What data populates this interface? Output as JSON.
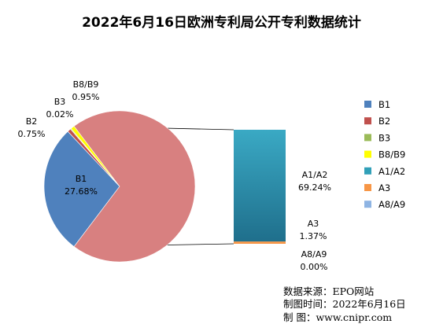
{
  "chart_data": {
    "type": "pie",
    "title": "2022年6月16日欧洲专利局公开专利数据统计",
    "series": [
      {
        "name": "B1",
        "label": "B1",
        "value_label": "27.68%",
        "value": 27.68,
        "color": "#4f81bd"
      },
      {
        "name": "B2",
        "label": "B2",
        "value_label": "0.75%",
        "value": 0.75,
        "color": "#c0504d"
      },
      {
        "name": "B3",
        "label": "B3",
        "value_label": "0.02%",
        "value": 0.02,
        "color": "#9bbb59"
      },
      {
        "name": "B8/B9",
        "label": "B8/B9",
        "value_label": "0.95%",
        "value": 0.95,
        "color": "#ffff00"
      },
      {
        "name": "A1/A2",
        "label": "A1/A2",
        "value_label": "69.24%",
        "value": 69.24,
        "color": "#31a0b8"
      },
      {
        "name": "A3",
        "label": "A3",
        "value_label": "1.37%",
        "value": 1.37,
        "color": "#f79646"
      },
      {
        "name": "A8/A9",
        "label": "A8/A9",
        "value_label": "0.00%",
        "value": 0.0,
        "color": "#8eb4e3"
      }
    ],
    "pie_of_pie": {
      "main_other_color": "#d88080"
    },
    "legend_position": "right"
  },
  "source": {
    "line1": "数据来源：EPO网站",
    "line2": "制图时间：2022年6月16日",
    "line3": "制      图：www.cnipr.com"
  }
}
